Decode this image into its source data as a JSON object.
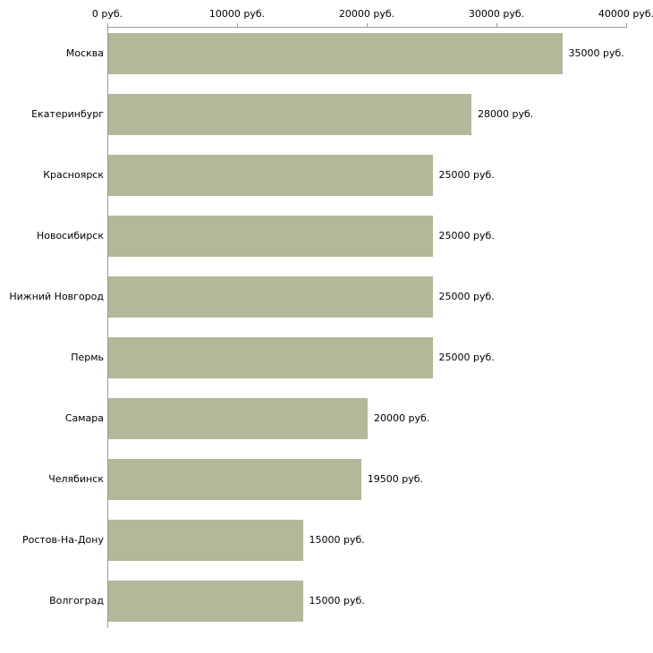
{
  "chart_data": {
    "type": "bar",
    "orientation": "horizontal",
    "title": "",
    "xlabel": "",
    "ylabel": "",
    "categories": [
      "Москва",
      "Екатеринбург",
      "Красноярск",
      "Новосибирск",
      "Нижний Новгород",
      "Пермь",
      "Самара",
      "Челябинск",
      "Ростов-На-Дону",
      "Волгоград"
    ],
    "values": [
      35000,
      28000,
      25000,
      25000,
      25000,
      25000,
      20000,
      19500,
      15000,
      15000
    ],
    "value_labels": [
      "35000 руб.",
      "28000 руб.",
      "25000 руб.",
      "25000 руб.",
      "25000 руб.",
      "25000 руб.",
      "20000 руб.",
      "19500 руб.",
      "15000 руб.",
      "15000 руб."
    ],
    "x_axis": {
      "position": "top",
      "min": 0,
      "max": 40000,
      "ticks": [
        0,
        10000,
        20000,
        30000,
        40000
      ],
      "tick_labels": [
        "0 руб.",
        "10000 руб.",
        "20000 руб.",
        "30000 руб.",
        "40000 руб."
      ]
    },
    "grid": false,
    "legend": false,
    "colors": {
      "bar": "#b2b89a",
      "axis": "#9a9a9a",
      "text": "#000000",
      "background": "#ffffff"
    }
  },
  "layout_note": ""
}
